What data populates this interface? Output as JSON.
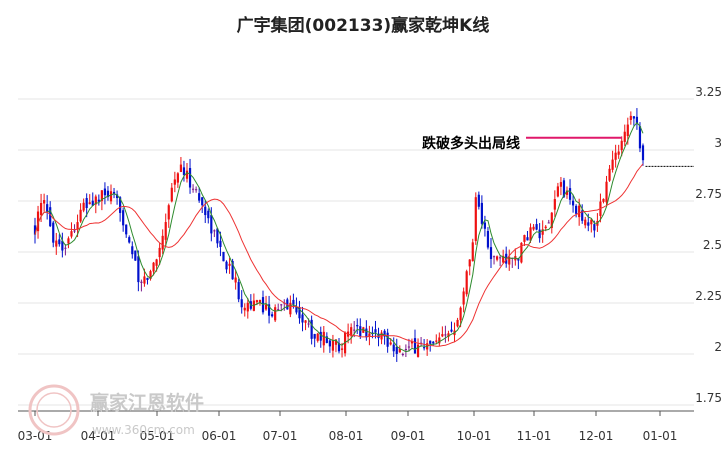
{
  "chart_data": {
    "type": "candlestick",
    "title": "广宇集团(002133)赢家乾坤K线",
    "xlabel": "",
    "ylabel": "",
    "ylim": [
      1.75,
      3.38
    ],
    "yticks": [
      1.75,
      2,
      2.25,
      2.5,
      2.75,
      3,
      3.25
    ],
    "ytick_labels": [
      "1.75",
      "2",
      "2.25",
      "2.5",
      "2.75",
      "3",
      "3.25"
    ],
    "xticks": [
      "03-01",
      "04-01",
      "05-01",
      "06-01",
      "07-01",
      "08-01",
      "09-01",
      "10-01",
      "11-01",
      "12-01",
      "01-01"
    ],
    "grid": true,
    "colors": {
      "up": "#ee1111",
      "down": "#0011cc",
      "neutral": "#7a1a8a",
      "ma_short": "#2e8b2e",
      "ma_long": "#ee3333",
      "annotation_line": "#e0186a",
      "reference_line": "#000000"
    },
    "annotation": {
      "text": "跌破多头出局线",
      "price": 3.06
    },
    "reference_line_price": 2.92,
    "anchors": [
      [
        "03-01",
        2.62
      ],
      [
        "03-05",
        2.75
      ],
      [
        "03-10",
        2.58
      ],
      [
        "03-15",
        2.52
      ],
      [
        "03-20",
        2.62
      ],
      [
        "03-25",
        2.72
      ],
      [
        "04-01",
        2.76
      ],
      [
        "04-06",
        2.78
      ],
      [
        "04-12",
        2.72
      ],
      [
        "04-18",
        2.52
      ],
      [
        "04-22",
        2.33
      ],
      [
        "04-28",
        2.4
      ],
      [
        "05-03",
        2.55
      ],
      [
        "05-08",
        2.8
      ],
      [
        "05-12",
        2.92
      ],
      [
        "05-18",
        2.84
      ],
      [
        "05-25",
        2.7
      ],
      [
        "06-02",
        2.5
      ],
      [
        "06-08",
        2.38
      ],
      [
        "06-12",
        2.26
      ],
      [
        "06-18",
        2.24
      ],
      [
        "06-22",
        2.24
      ],
      [
        "06-28",
        2.2
      ],
      [
        "07-05",
        2.25
      ],
      [
        "07-10",
        2.2
      ],
      [
        "07-16",
        2.1
      ],
      [
        "07-22",
        2.08
      ],
      [
        "07-28",
        2.04
      ],
      [
        "08-03",
        2.1
      ],
      [
        "08-08",
        2.12
      ],
      [
        "08-13",
        2.1
      ],
      [
        "08-18",
        2.1
      ],
      [
        "08-24",
        2.05
      ],
      [
        "08-30",
        2.0
      ],
      [
        "09-06",
        2.05
      ],
      [
        "09-12",
        2.03
      ],
      [
        "09-18",
        2.08
      ],
      [
        "09-22",
        2.14
      ],
      [
        "09-26",
        2.3
      ],
      [
        "09-30",
        2.52
      ],
      [
        "10-02",
        2.78
      ],
      [
        "10-06",
        2.62
      ],
      [
        "10-10",
        2.45
      ],
      [
        "10-15",
        2.48
      ],
      [
        "10-20",
        2.45
      ],
      [
        "10-25",
        2.5
      ],
      [
        "10-30",
        2.62
      ],
      [
        "11-04",
        2.58
      ],
      [
        "11-08",
        2.6
      ],
      [
        "11-13",
        2.85
      ],
      [
        "11-18",
        2.75
      ],
      [
        "11-24",
        2.68
      ],
      [
        "11-30",
        2.62
      ],
      [
        "12-04",
        2.75
      ],
      [
        "12-08",
        2.92
      ],
      [
        "12-12",
        3.0
      ],
      [
        "12-14",
        3.08
      ],
      [
        "12-18",
        3.2
      ],
      [
        "12-21",
        3.12
      ],
      [
        "12-24",
        2.94
      ]
    ]
  },
  "watermark": {
    "brand": "赢家江恩软件",
    "url": "www.360cm.com",
    "seal": "赢家"
  }
}
